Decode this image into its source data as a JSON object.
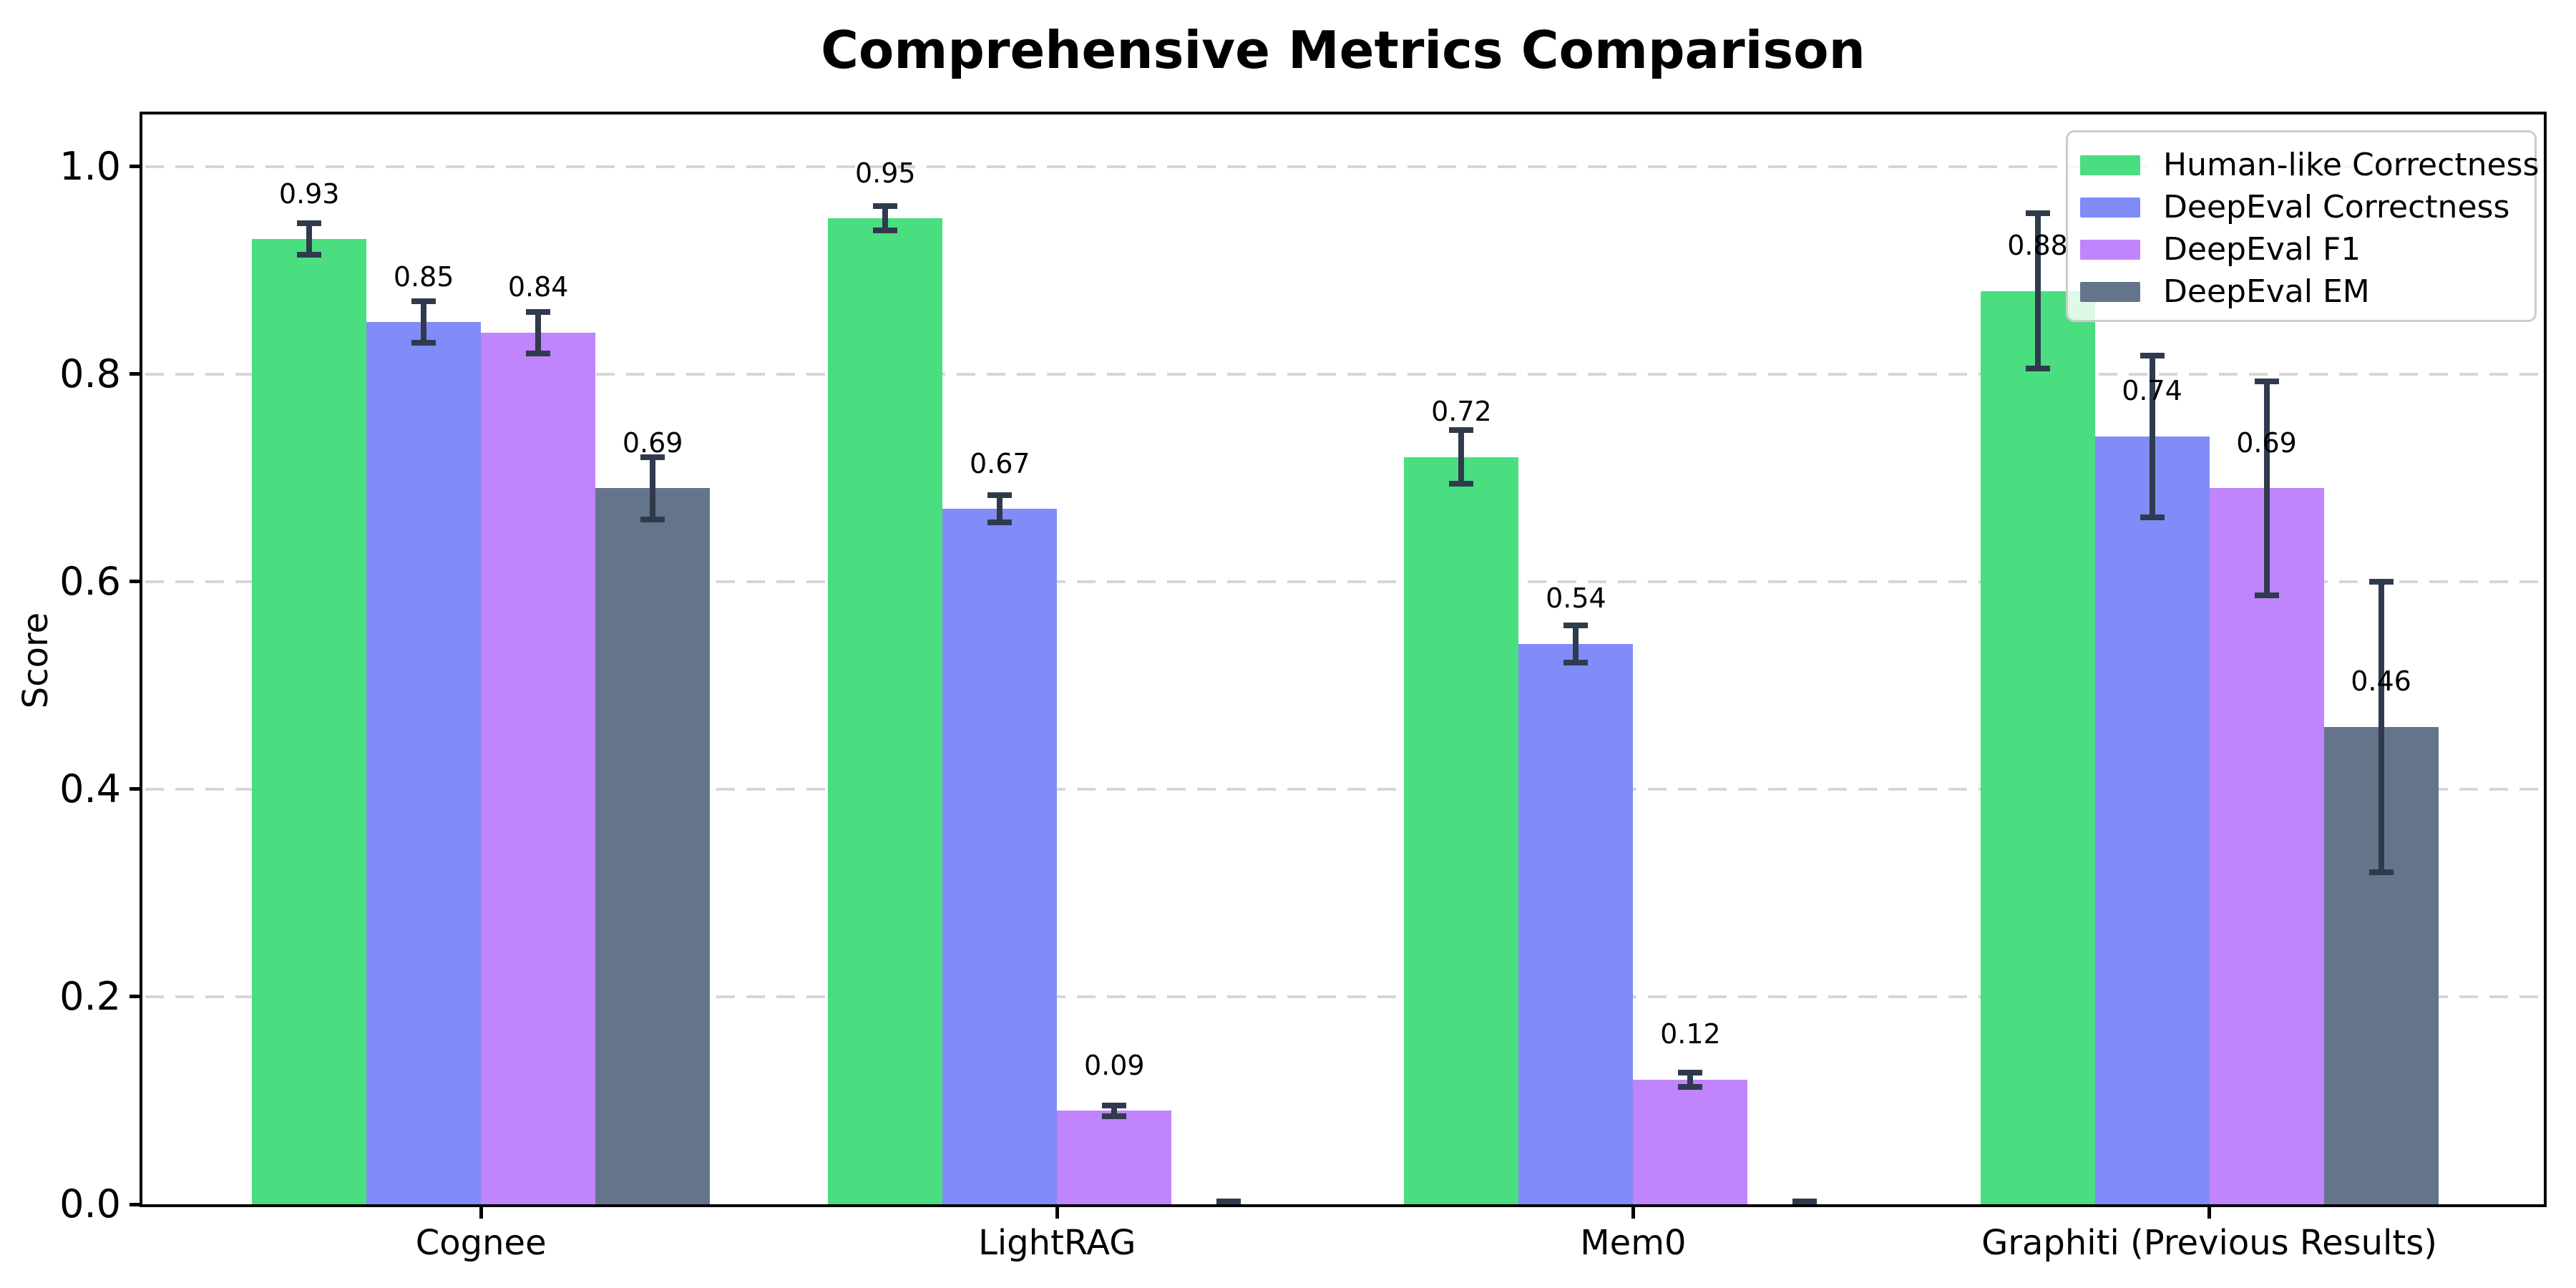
{
  "title": "Comprehensive Metrics Comparison",
  "chart_data": {
    "type": "bar",
    "categories": [
      "Cognee",
      "LightRAG",
      "Mem0",
      "Graphiti (Previous Results)"
    ],
    "series": [
      {
        "name": "Human-like Correctness",
        "color": "#4ade80",
        "values": [
          0.93,
          0.95,
          0.72,
          0.88
        ],
        "errors": [
          0.015,
          0.012,
          0.026,
          0.075
        ],
        "labels": [
          "0.93",
          "0.95",
          "0.72",
          "0.88"
        ]
      },
      {
        "name": "DeepEval Correctness",
        "color": "#818cf8",
        "values": [
          0.85,
          0.67,
          0.54,
          0.74
        ],
        "errors": [
          0.02,
          0.013,
          0.018,
          0.078
        ],
        "labels": [
          "0.85",
          "0.67",
          "0.54",
          "0.74"
        ]
      },
      {
        "name": "DeepEval F1",
        "color": "#c084fc",
        "values": [
          0.84,
          0.09,
          0.12,
          0.69
        ],
        "errors": [
          0.02,
          0.005,
          0.007,
          0.103
        ],
        "labels": [
          "0.84",
          "0.09",
          "0.12",
          "0.69"
        ]
      },
      {
        "name": "DeepEval EM",
        "color": "#64748b",
        "values": [
          0.69,
          0.0,
          0.0,
          0.46
        ],
        "errors": [
          0.03,
          0.003,
          0.003,
          0.14
        ],
        "labels": [
          "0.69",
          "",
          "",
          "0.46"
        ]
      }
    ],
    "title": "Comprehensive Metrics Comparison",
    "xlabel": "",
    "ylabel": "Score",
    "yticks": [
      "0.0",
      "0.2",
      "0.4",
      "0.6",
      "0.8",
      "1.0"
    ],
    "ytick_values": [
      0.0,
      0.2,
      0.4,
      0.6,
      0.8,
      1.0
    ],
    "ylim": [
      0,
      1.05
    ],
    "grid": "horizontal-dashed",
    "legend_position": "upper right",
    "legend_entries": [
      "Human-like Correctness",
      "DeepEval Correctness",
      "DeepEval F1",
      "DeepEval EM"
    ]
  },
  "style": {
    "error_bar_color": "#2f3b4d",
    "grid_color": "#d6d6d6",
    "spine_color": "#000000",
    "background": "#ffffff",
    "text_color": "#000000"
  }
}
